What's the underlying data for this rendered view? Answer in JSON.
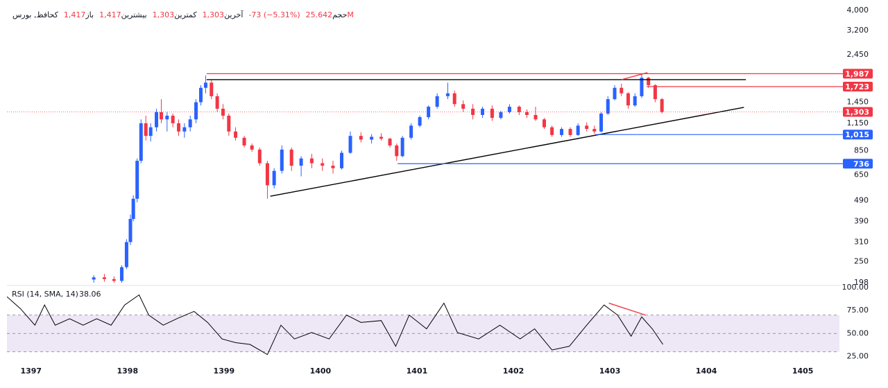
{
  "header": {
    "symbol": "کحافظ, بورس",
    "fields": [
      {
        "label": "باز",
        "value": "1,417"
      },
      {
        "label": "بیشترین",
        "value": "1,417"
      },
      {
        "label": "کمترین",
        "value": "1,303"
      },
      {
        "label": "آخرین",
        "value": "1,303"
      },
      {
        "label": "",
        "value": "-73 (−5.31%)"
      },
      {
        "label": "حجم",
        "value": "25.642M"
      }
    ]
  },
  "chart_data": [
    {
      "type": "candlestick",
      "log_scale": true,
      "up_color": "#2962ff",
      "down_color": "#f23645",
      "xlim": [
        1396.75,
        1405.38
      ],
      "ylim": [
        195,
        4150
      ],
      "xticks": [
        1397,
        1398,
        1399,
        1400,
        1401,
        1402,
        1403,
        1404,
        1405
      ],
      "yticks": [
        {
          "value": 4000,
          "label": "4,000"
        },
        {
          "value": 3200,
          "label": "3,200"
        },
        {
          "value": 2450,
          "label": "2,450"
        },
        {
          "value": 1450,
          "label": "1,450"
        },
        {
          "value": 1150,
          "label": "1,150"
        },
        850,
        650,
        490,
        390,
        310,
        250,
        198
      ],
      "x": [
        1397.65,
        1397.76,
        1397.86,
        1397.94,
        1397.99,
        1398.03,
        1398.06,
        1398.1,
        1398.14,
        1398.19,
        1398.24,
        1398.3,
        1398.35,
        1398.41,
        1398.47,
        1398.53,
        1398.59,
        1398.65,
        1398.71,
        1398.76,
        1398.81,
        1398.87,
        1398.93,
        1398.99,
        1399.05,
        1399.12,
        1399.21,
        1399.29,
        1399.37,
        1399.45,
        1399.52,
        1399.6,
        1399.7,
        1399.8,
        1399.91,
        1400.02,
        1400.13,
        1400.22,
        1400.31,
        1400.42,
        1400.53,
        1400.63,
        1400.72,
        1400.79,
        1400.85,
        1400.94,
        1401.03,
        1401.12,
        1401.21,
        1401.32,
        1401.39,
        1401.48,
        1401.58,
        1401.68,
        1401.78,
        1401.87,
        1401.96,
        1402.06,
        1402.14,
        1402.23,
        1402.32,
        1402.4,
        1402.5,
        1402.59,
        1402.67,
        1402.76,
        1402.84,
        1402.91,
        1402.98,
        1403.05,
        1403.12,
        1403.19,
        1403.26,
        1403.33,
        1403.4,
        1403.47,
        1403.54
      ],
      "open": [
        205,
        210,
        206,
        202,
        235,
        310,
        400,
        500,
        760,
        1150,
        1000,
        1100,
        1300,
        1200,
        1250,
        1150,
        1050,
        1100,
        1200,
        1450,
        1700,
        1800,
        1550,
        1350,
        1250,
        1050,
        980,
        900,
        860,
        740,
        580,
        680,
        860,
        720,
        780,
        740,
        720,
        700,
        830,
        1000,
        960,
        990,
        970,
        900,
        800,
        980,
        1120,
        1230,
        1380,
        1550,
        1600,
        1420,
        1350,
        1260,
        1350,
        1220,
        1300,
        1380,
        1300,
        1260,
        1200,
        1100,
        1010,
        1080,
        1010,
        1120,
        1080,
        1050,
        1280,
        1500,
        1700,
        1600,
        1400,
        1550,
        1900,
        1750,
        1500
      ],
      "high": [
        215,
        218,
        212,
        240,
        320,
        420,
        520,
        780,
        1200,
        1250,
        1150,
        1350,
        1500,
        1300,
        1280,
        1200,
        1150,
        1250,
        1500,
        1750,
        1950,
        1850,
        1600,
        1420,
        1280,
        1100,
        1000,
        920,
        880,
        760,
        700,
        900,
        880,
        800,
        820,
        780,
        760,
        850,
        1050,
        1040,
        1020,
        1030,
        980,
        920,
        1000,
        1150,
        1250,
        1400,
        1600,
        1800,
        1650,
        1480,
        1420,
        1380,
        1400,
        1320,
        1420,
        1400,
        1340,
        1380,
        1220,
        1120,
        1100,
        1100,
        1150,
        1160,
        1120,
        1300,
        1550,
        1750,
        1780,
        1620,
        1600,
        1987,
        1920,
        1770,
        1520
      ],
      "low": [
        198,
        200,
        198,
        198,
        230,
        300,
        390,
        480,
        740,
        950,
        940,
        1050,
        1150,
        1050,
        1100,
        1000,
        980,
        1050,
        1150,
        1400,
        1600,
        1500,
        1300,
        1200,
        1000,
        950,
        880,
        840,
        720,
        500,
        560,
        660,
        680,
        640,
        700,
        680,
        660,
        690,
        820,
        930,
        920,
        950,
        880,
        760,
        790,
        960,
        1100,
        1200,
        1350,
        1500,
        1380,
        1300,
        1200,
        1220,
        1180,
        1200,
        1280,
        1260,
        1220,
        1180,
        1080,
        990,
        990,
        990,
        1000,
        1050,
        1020,
        1040,
        1260,
        1480,
        1550,
        1350,
        1380,
        1520,
        1700,
        1450,
        1280
      ],
      "close": [
        210,
        206,
        202,
        235,
        310,
        400,
        500,
        760,
        1150,
        1000,
        1100,
        1300,
        1200,
        1250,
        1150,
        1050,
        1100,
        1200,
        1450,
        1700,
        1800,
        1550,
        1350,
        1250,
        1050,
        980,
        900,
        860,
        740,
        580,
        680,
        860,
        720,
        780,
        740,
        720,
        700,
        830,
        1000,
        960,
        990,
        970,
        900,
        800,
        980,
        1120,
        1230,
        1380,
        1550,
        1600,
        1420,
        1350,
        1260,
        1350,
        1220,
        1300,
        1380,
        1300,
        1260,
        1200,
        1100,
        1010,
        1080,
        1010,
        1120,
        1080,
        1050,
        1280,
        1500,
        1700,
        1600,
        1400,
        1550,
        1900,
        1750,
        1500,
        1303
      ],
      "levels": [
        {
          "value": 1987,
          "label": "1,987",
          "color": "#f23645",
          "x_start": 1398.82,
          "style": "solid"
        },
        {
          "value": 1723,
          "label": "1,723",
          "color": "#f23645",
          "x_start": 1403.38,
          "style": "solid"
        },
        {
          "value": 1303,
          "label": "1,303",
          "color": "#f23645",
          "x_start": 1396.75,
          "style": "dotted"
        },
        {
          "value": 1015,
          "label": "1,015",
          "color": "#2962ff",
          "x_start": 1402.85,
          "style": "solid"
        },
        {
          "value": 736,
          "label": "736",
          "color": "#2962ff",
          "x_start": 1400.8,
          "style": "solid"
        }
      ],
      "trend_lines": [
        {
          "x": [
            1398.82,
            1404.41
          ],
          "y": [
            1860,
            1860
          ],
          "color": "#000000"
        },
        {
          "x": [
            1399.48,
            1404.39
          ],
          "y": [
            514,
            1370
          ],
          "color": "#000000"
        },
        {
          "x": [
            1403.12,
            1403.39
          ],
          "y": [
            1860,
            2010
          ],
          "color": "#f23645"
        }
      ]
    },
    {
      "type": "line",
      "title": "RSI (14, SMA, 14)",
      "color": "#000000",
      "xlim": [
        1396.75,
        1405.38
      ],
      "ylim": [
        20,
        100
      ],
      "yticks": [
        {
          "value": 100,
          "label": "100.00"
        },
        {
          "value": 75,
          "label": "75.00"
        },
        {
          "value": 50,
          "label": "50.00"
        },
        {
          "value": 25,
          "label": "25.00"
        }
      ],
      "band": [
        30,
        70
      ],
      "mid": 50,
      "band_color": "#ede7f6",
      "x": [
        1396.75,
        1396.89,
        1397.04,
        1397.14,
        1397.25,
        1397.4,
        1397.54,
        1397.68,
        1397.83,
        1397.97,
        1398.12,
        1398.22,
        1398.37,
        1398.51,
        1398.69,
        1398.83,
        1398.98,
        1399.12,
        1399.27,
        1399.45,
        1399.59,
        1399.73,
        1399.91,
        1400.09,
        1400.27,
        1400.42,
        1400.63,
        1400.78,
        1400.92,
        1401.1,
        1401.28,
        1401.42,
        1401.64,
        1401.86,
        1402.07,
        1402.22,
        1402.4,
        1402.58,
        1402.76,
        1402.94,
        1403.08,
        1403.22,
        1403.33,
        1403.44,
        1403.55
      ],
      "values": [
        90,
        77,
        59,
        81,
        59,
        66,
        59,
        66,
        59,
        81,
        92,
        70,
        59,
        66,
        74,
        62,
        44,
        40,
        38,
        27,
        59,
        44,
        51,
        44,
        70,
        62,
        64,
        36,
        70,
        55,
        83,
        51,
        44,
        59,
        44,
        55,
        32,
        36,
        59,
        81,
        70,
        47,
        68,
        55,
        38.06
      ],
      "last_value_label": "38.06",
      "trend_lines": [
        {
          "x": [
            1402.99,
            1403.37
          ],
          "y": [
            83,
            70
          ],
          "color": "#f23645"
        }
      ]
    }
  ]
}
